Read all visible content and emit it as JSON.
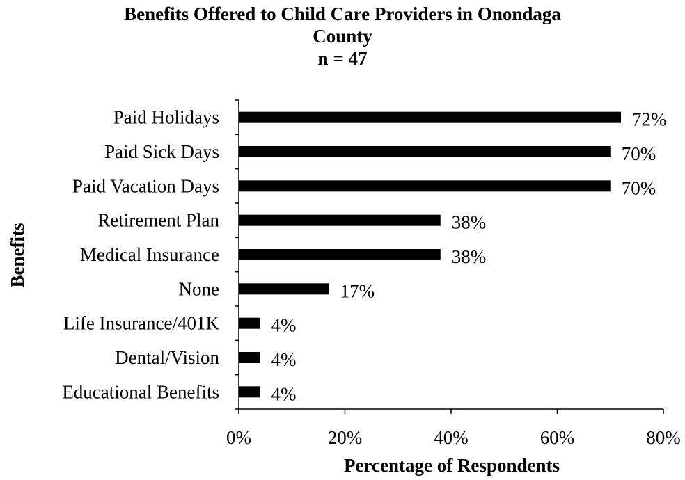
{
  "chart_data": {
    "type": "bar",
    "orientation": "horizontal",
    "title_lines": [
      "Benefits Offered to Child Care Providers in Onondaga",
      "County",
      "n = 47"
    ],
    "xlabel": "Percentage of Respondents",
    "ylabel": "Benefits",
    "categories": [
      "Paid Holidays",
      "Paid Sick Days",
      "Paid Vacation Days",
      "Retirement Plan",
      "Medical Insurance",
      "None",
      "Life Insurance/401K",
      "Dental/Vision",
      "Educational Benefits"
    ],
    "values": [
      72,
      70,
      70,
      38,
      38,
      17,
      4,
      4,
      4
    ],
    "value_labels": [
      "72%",
      "70%",
      "70%",
      "38%",
      "38%",
      "17%",
      "4%",
      "4%",
      "4%"
    ],
    "xlim": [
      0,
      80
    ],
    "xticks": [
      0,
      20,
      40,
      60,
      80
    ],
    "xtick_labels": [
      "0%",
      "20%",
      "40%",
      "60%",
      "80%"
    ],
    "bar_color": "#000000",
    "grid": false,
    "legend": "none"
  }
}
